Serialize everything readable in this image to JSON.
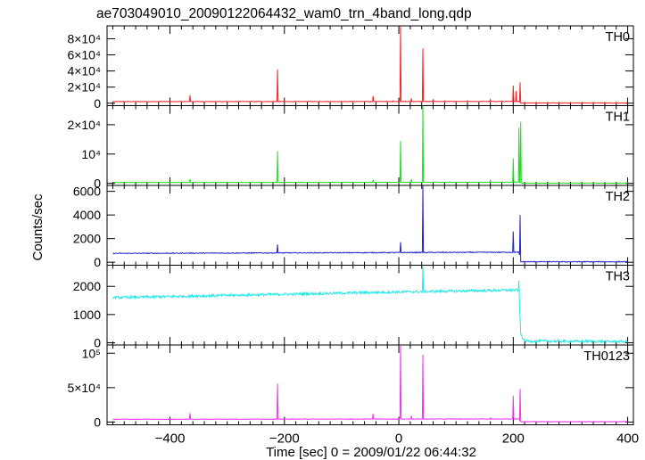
{
  "chart_data": {
    "type": "line",
    "title": "ae703049010_20090122064432_wam0_trn_4band_long.qdp",
    "xlabel": "Time [sec] 0 = 2009/01/22 06:44:32",
    "ylabel": "Counts/sec",
    "xlim": [
      -510,
      410
    ],
    "xticks": [
      -400,
      -200,
      0,
      200,
      400
    ],
    "xtick_labels": [
      "−400",
      "−200",
      "0",
      "200",
      "400"
    ],
    "panels": [
      {
        "name": "TH0",
        "color": "#ff2020",
        "ylim": [
          -3000,
          96000
        ],
        "yticks": [
          0,
          20000,
          40000,
          60000,
          80000
        ],
        "ytick_labels": [
          "0",
          "2×10⁴",
          "4×10⁴",
          "6×10⁴",
          "8×10⁴"
        ],
        "baseline": [
          [
            -500,
            2000
          ],
          [
            210,
            2200
          ],
          [
            213,
            300
          ],
          [
            400,
            300
          ]
        ],
        "noise": 300,
        "spikes": [
          [
            -365,
            10000
          ],
          [
            -212,
            42000
          ],
          [
            -85,
            2500
          ],
          [
            -45,
            9000
          ],
          [
            -10,
            3000
          ],
          [
            3,
            96000
          ],
          [
            22,
            6000
          ],
          [
            42,
            68000
          ],
          [
            60,
            5000
          ],
          [
            80,
            3000
          ],
          [
            120,
            3000
          ],
          [
            160,
            4500
          ],
          [
            200,
            22000
          ],
          [
            205,
            15000
          ],
          [
            212,
            26000
          ]
        ]
      },
      {
        "name": "TH1",
        "color": "#22dd22",
        "ylim": [
          -700,
          26500
        ],
        "yticks": [
          0,
          10000,
          20000
        ],
        "ytick_labels": [
          "0",
          "10⁴",
          "2×10⁴"
        ],
        "baseline": [
          [
            -500,
            300
          ],
          [
            210,
            400
          ],
          [
            213,
            100
          ],
          [
            400,
            100
          ]
        ],
        "noise": 60,
        "spikes": [
          [
            -365,
            1500
          ],
          [
            -212,
            11000
          ],
          [
            -45,
            1200
          ],
          [
            3,
            14500
          ],
          [
            22,
            1500
          ],
          [
            42,
            27000
          ],
          [
            160,
            1000
          ],
          [
            200,
            8500
          ],
          [
            210,
            19000
          ],
          [
            213,
            21000
          ]
        ]
      },
      {
        "name": "TH2",
        "color": "#2222cc",
        "ylim": [
          -250,
          6500
        ],
        "yticks": [
          0,
          2000,
          4000,
          6000
        ],
        "ytick_labels": [
          "0",
          "2000",
          "4000",
          "6000"
        ],
        "baseline": [
          [
            -500,
            750
          ],
          [
            210,
            850
          ],
          [
            213,
            40
          ],
          [
            400,
            40
          ]
        ],
        "noise": 35,
        "spikes": [
          [
            -212,
            1500
          ],
          [
            3,
            1700
          ],
          [
            42,
            6500
          ],
          [
            200,
            2600
          ],
          [
            212,
            4000
          ]
        ]
      },
      {
        "name": "TH3",
        "color": "#22e8e8",
        "ylim": [
          -80,
          2750
        ],
        "yticks": [
          0,
          1000,
          2000
        ],
        "ytick_labels": [
          "0",
          "1000",
          "2000"
        ],
        "baseline": [
          [
            -500,
            1600
          ],
          [
            -200,
            1720
          ],
          [
            0,
            1800
          ],
          [
            210,
            1870
          ],
          [
            213,
            300
          ],
          [
            220,
            60
          ],
          [
            400,
            40
          ]
        ],
        "noise": 45,
        "spikes": [
          [
            42,
            2700
          ],
          [
            210,
            2200
          ]
        ]
      },
      {
        "name": "TH0123",
        "color": "#ee33ee",
        "ylim": [
          -4000,
          112000
        ],
        "yticks": [
          0,
          50000,
          100000
        ],
        "ytick_labels": [
          "0",
          "5×10⁴",
          "10⁵"
        ],
        "baseline": [
          [
            -500,
            4000
          ],
          [
            210,
            4500
          ],
          [
            213,
            500
          ],
          [
            400,
            500
          ]
        ],
        "noise": 400,
        "spikes": [
          [
            -365,
            13000
          ],
          [
            -212,
            56000
          ],
          [
            -85,
            5000
          ],
          [
            -45,
            12000
          ],
          [
            3,
            112000
          ],
          [
            22,
            9000
          ],
          [
            42,
            98000
          ],
          [
            160,
            6000
          ],
          [
            200,
            38000
          ],
          [
            212,
            48000
          ]
        ]
      }
    ]
  }
}
